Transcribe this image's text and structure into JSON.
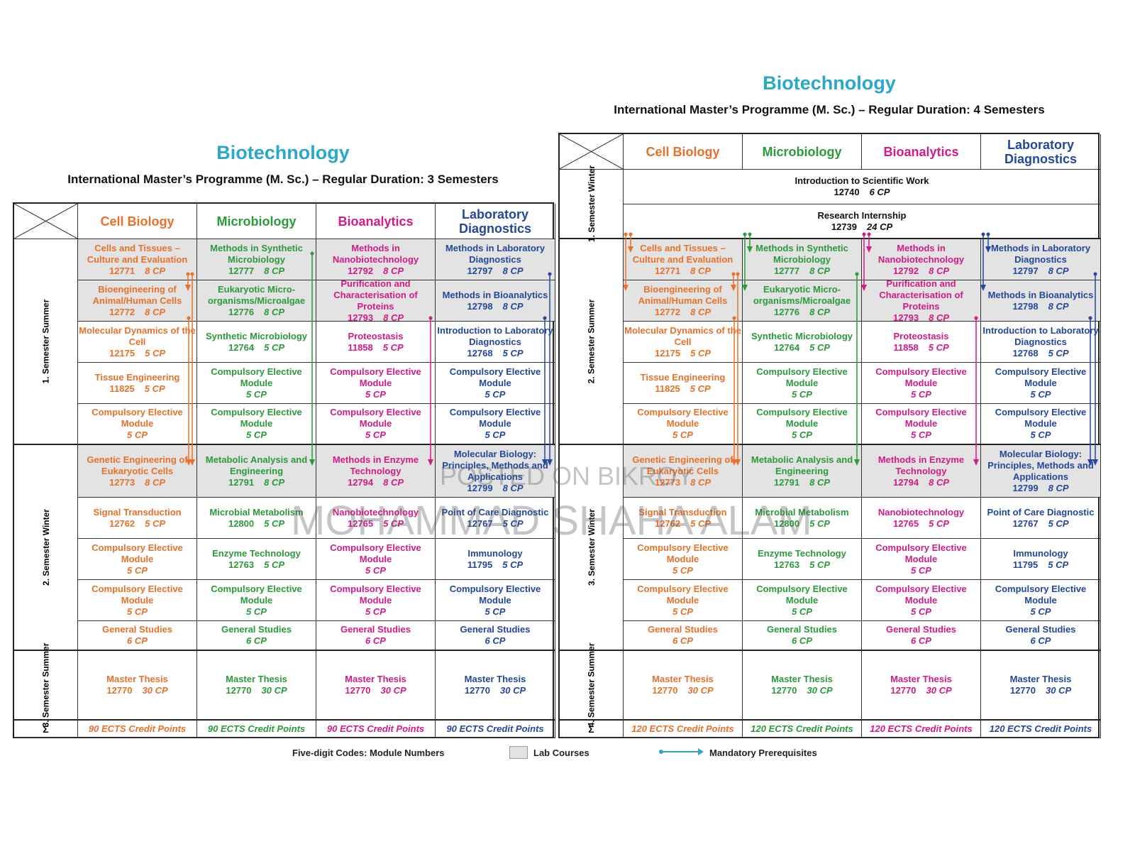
{
  "left": {
    "title": "Biotechnology",
    "subtitle": "International Master’s Programme (M. Sc.) – Regular Duration: 3 Semesters",
    "columns": [
      "Cell Biology",
      "Microbiology",
      "Bioanalytics",
      "Laboratory Diagnostics"
    ],
    "semesters": [
      {
        "label": "1. Semester Summer",
        "rows": [
          {
            "lab": true,
            "cells": [
              {
                "name": "Cells and Tissues – Culture and Evaluation",
                "code": "12771",
                "cp": "8 CP"
              },
              {
                "name": "Methods in Synthetic Microbiology",
                "code": "12777",
                "cp": "8 CP"
              },
              {
                "name": "Methods in Nanobiotechnology",
                "code": "12792",
                "cp": "8 CP"
              },
              {
                "name": "Methods in Laboratory Diagnostics",
                "code": "12797",
                "cp": "8 CP"
              }
            ]
          },
          {
            "lab": true,
            "cells": [
              {
                "name": "Bioengineering of Animal/Human Cells",
                "code": "12772",
                "cp": "8 CP"
              },
              {
                "name": "Eukaryotic Micro-organisms/Microalgae",
                "code": "12776",
                "cp": "8 CP"
              },
              {
                "name": "Purification and Characterisation of Proteins",
                "code": "12793",
                "cp": "8 CP"
              },
              {
                "name": "Methods in Bioanalytics",
                "code": "12798",
                "cp": "8 CP"
              }
            ]
          },
          {
            "lab": false,
            "cells": [
              {
                "name": "Molecular Dynamics of the Cell",
                "code": "12175",
                "cp": "5 CP"
              },
              {
                "name": "Synthetic Microbiology",
                "code": "12764",
                "cp": "5 CP"
              },
              {
                "name": "Proteostasis",
                "code": "11858",
                "cp": "5 CP"
              },
              {
                "name": "Introduction to Laboratory Diagnostics",
                "code": "12768",
                "cp": "5 CP"
              }
            ]
          },
          {
            "lab": false,
            "cells": [
              {
                "name": "Tissue Engineering",
                "code": "11825",
                "cp": "5 CP"
              },
              {
                "name": "Compulsory Elective Module",
                "code": "",
                "cp": "5 CP"
              },
              {
                "name": "Compulsory Elective Module",
                "code": "",
                "cp": "5 CP"
              },
              {
                "name": "Compulsory Elective Module",
                "code": "",
                "cp": "5 CP"
              }
            ]
          },
          {
            "lab": false,
            "cells": [
              {
                "name": "Compulsory Elective Module",
                "code": "",
                "cp": "5 CP"
              },
              {
                "name": "Compulsory Elective Module",
                "code": "",
                "cp": "5 CP"
              },
              {
                "name": "Compulsory Elective Module",
                "code": "",
                "cp": "5 CP"
              },
              {
                "name": "Compulsory Elective Module",
                "code": "",
                "cp": "5 CP"
              }
            ]
          }
        ]
      },
      {
        "label": "2. Semester Winter",
        "rows": [
          {
            "lab": true,
            "cells": [
              {
                "name": "Genetic Engineering of Eukaryotic Cells",
                "code": "12773",
                "cp": "8 CP"
              },
              {
                "name": "Metabolic Analysis and Engineering",
                "code": "12791",
                "cp": "8 CP"
              },
              {
                "name": "Methods in Enzyme Technology",
                "code": "12794",
                "cp": "8 CP"
              },
              {
                "name": "Molecular Biology: Principles, Methods and Applications",
                "code": "12799",
                "cp": "8 CP"
              }
            ]
          },
          {
            "lab": false,
            "cells": [
              {
                "name": "Signal Transduction",
                "code": "12762",
                "cp": "5 CP"
              },
              {
                "name": "Microbial Metabolism",
                "code": "12800",
                "cp": "5 CP"
              },
              {
                "name": "Nanobiotechnology",
                "code": "12765",
                "cp": "5 CP"
              },
              {
                "name": "Point of Care Diagnostic",
                "code": "12767",
                "cp": "5 CP"
              }
            ]
          },
          {
            "lab": false,
            "cells": [
              {
                "name": "Compulsory Elective Module",
                "code": "",
                "cp": "5 CP"
              },
              {
                "name": "Enzyme Technology",
                "code": "12763",
                "cp": "5 CP"
              },
              {
                "name": "Compulsory Elective Module",
                "code": "",
                "cp": "5 CP"
              },
              {
                "name": "Immunology",
                "code": "11795",
                "cp": "5 CP"
              }
            ]
          },
          {
            "lab": false,
            "cells": [
              {
                "name": "Compulsory Elective Module",
                "code": "",
                "cp": "5 CP"
              },
              {
                "name": "Compulsory Elective Module",
                "code": "",
                "cp": "5 CP"
              },
              {
                "name": "Compulsory Elective Module",
                "code": "",
                "cp": "5 CP"
              },
              {
                "name": "Compulsory Elective Module",
                "code": "",
                "cp": "5 CP"
              }
            ]
          },
          {
            "lab": false,
            "cells": [
              {
                "name": "General Studies",
                "code": "",
                "cp": "6 CP"
              },
              {
                "name": "General Studies",
                "code": "",
                "cp": "6 CP"
              },
              {
                "name": "General Studies",
                "code": "",
                "cp": "6 CP"
              },
              {
                "name": "General Studies",
                "code": "",
                "cp": "6 CP"
              }
            ]
          }
        ]
      },
      {
        "label": "3. Semester Summer",
        "rows": [
          {
            "lab": false,
            "cells": [
              {
                "name": "Master Thesis",
                "code": "12770",
                "cp": "30 CP"
              },
              {
                "name": "Master Thesis",
                "code": "12770",
                "cp": "30 CP"
              },
              {
                "name": "Master Thesis",
                "code": "12770",
                "cp": "30 CP"
              },
              {
                "name": "Master Thesis",
                "code": "12770",
                "cp": "30 CP"
              }
            ]
          }
        ]
      }
    ],
    "sigma": "Σ",
    "totals": [
      "90 ECTS Credit Points",
      "90 ECTS Credit Points",
      "90 ECTS Credit Points",
      "90 ECTS Credit Points"
    ]
  },
  "right": {
    "title": "Biotechnology",
    "subtitle": "International Master’s Programme (M. Sc.) – Regular Duration: 4 Semesters",
    "columns": [
      "Cell Biology",
      "Microbiology",
      "Bioanalytics",
      "Laboratory Diagnostics"
    ],
    "first_semester": {
      "label": "1. Semester Winter",
      "items": [
        {
          "name": "Introduction to Scientific Work",
          "code": "12740",
          "cp": "6 CP"
        },
        {
          "name": "Research Internship",
          "code": "12739",
          "cp": "24 CP"
        }
      ]
    },
    "semesters": [
      {
        "label": "2. Semester Summer",
        "rows": [
          {
            "lab": true,
            "cells": [
              {
                "name": "Cells and Tissues – Culture and Evaluation",
                "code": "12771",
                "cp": "8 CP"
              },
              {
                "name": "Methods in Synthetic Microbiology",
                "code": "12777",
                "cp": "8 CP"
              },
              {
                "name": "Methods in Nanobiotechnology",
                "code": "12792",
                "cp": "8 CP"
              },
              {
                "name": "Methods in Laboratory Diagnostics",
                "code": "12797",
                "cp": "8 CP"
              }
            ]
          },
          {
            "lab": true,
            "cells": [
              {
                "name": "Bioengineering of Animal/Human Cells",
                "code": "12772",
                "cp": "8 CP"
              },
              {
                "name": "Eukaryotic Micro-organisms/Microalgae",
                "code": "12776",
                "cp": "8 CP"
              },
              {
                "name": "Purification and Characterisation of Proteins",
                "code": "12793",
                "cp": "8 CP"
              },
              {
                "name": "Methods in Bioanalytics",
                "code": "12798",
                "cp": "8 CP"
              }
            ]
          },
          {
            "lab": false,
            "cells": [
              {
                "name": "Molecular Dynamics of the Cell",
                "code": "12175",
                "cp": "5 CP"
              },
              {
                "name": "Synthetic Microbiology",
                "code": "12764",
                "cp": "5 CP"
              },
              {
                "name": "Proteostasis",
                "code": "11858",
                "cp": "5 CP"
              },
              {
                "name": "Introduction to Laboratory Diagnostics",
                "code": "12768",
                "cp": "5 CP"
              }
            ]
          },
          {
            "lab": false,
            "cells": [
              {
                "name": "Tissue Engineering",
                "code": "11825",
                "cp": "5 CP"
              },
              {
                "name": "Compulsory Elective Module",
                "code": "",
                "cp": "5 CP"
              },
              {
                "name": "Compulsory Elective Module",
                "code": "",
                "cp": "5 CP"
              },
              {
                "name": "Compulsory Elective Module",
                "code": "",
                "cp": "5 CP"
              }
            ]
          },
          {
            "lab": false,
            "cells": [
              {
                "name": "Compulsory Elective Module",
                "code": "",
                "cp": "5 CP"
              },
              {
                "name": "Compulsory Elective Module",
                "code": "",
                "cp": "5 CP"
              },
              {
                "name": "Compulsory Elective Module",
                "code": "",
                "cp": "5 CP"
              },
              {
                "name": "Compulsory Elective Module",
                "code": "",
                "cp": "5 CP"
              }
            ]
          }
        ]
      },
      {
        "label": "3. Semester Winter",
        "rows": [
          {
            "lab": true,
            "cells": [
              {
                "name": "Genetic Engineering of Eukaryotic Cells",
                "code": "12773",
                "cp": "8 CP"
              },
              {
                "name": "Metabolic Analysis and Engineering",
                "code": "12791",
                "cp": "8 CP"
              },
              {
                "name": "Methods in Enzyme Technology",
                "code": "12794",
                "cp": "8 CP"
              },
              {
                "name": "Molecular Biology: Principles, Methods and Applications",
                "code": "12799",
                "cp": "8 CP"
              }
            ]
          },
          {
            "lab": false,
            "cells": [
              {
                "name": "Signal Transduction",
                "code": "12762",
                "cp": "5 CP"
              },
              {
                "name": "Microbial Metabolism",
                "code": "12800",
                "cp": "5 CP"
              },
              {
                "name": "Nanobiotechnology",
                "code": "12765",
                "cp": "5 CP"
              },
              {
                "name": "Point of Care Diagnostic",
                "code": "12767",
                "cp": "5 CP"
              }
            ]
          },
          {
            "lab": false,
            "cells": [
              {
                "name": "Compulsory Elective Module",
                "code": "",
                "cp": "5 CP"
              },
              {
                "name": "Enzyme Technology",
                "code": "12763",
                "cp": "5 CP"
              },
              {
                "name": "Compulsory Elective Module",
                "code": "",
                "cp": "5 CP"
              },
              {
                "name": "Immunology",
                "code": "11795",
                "cp": "5 CP"
              }
            ]
          },
          {
            "lab": false,
            "cells": [
              {
                "name": "Compulsory Elective Module",
                "code": "",
                "cp": "5 CP"
              },
              {
                "name": "Compulsory Elective Module",
                "code": "",
                "cp": "5 CP"
              },
              {
                "name": "Compulsory Elective Module",
                "code": "",
                "cp": "5 CP"
              },
              {
                "name": "Compulsory Elective Module",
                "code": "",
                "cp": "5 CP"
              }
            ]
          },
          {
            "lab": false,
            "cells": [
              {
                "name": "General Studies",
                "code": "",
                "cp": "6 CP"
              },
              {
                "name": "General Studies",
                "code": "",
                "cp": "6 CP"
              },
              {
                "name": "General Studies",
                "code": "",
                "cp": "6 CP"
              },
              {
                "name": "General Studies",
                "code": "",
                "cp": "6 CP"
              }
            ]
          }
        ]
      },
      {
        "label": "4. Semester Summer",
        "rows": [
          {
            "lab": false,
            "cells": [
              {
                "name": "Master Thesis",
                "code": "12770",
                "cp": "30 CP"
              },
              {
                "name": "Master Thesis",
                "code": "12770",
                "cp": "30 CP"
              },
              {
                "name": "Master Thesis",
                "code": "12770",
                "cp": "30 CP"
              },
              {
                "name": "Master Thesis",
                "code": "12770",
                "cp": "30 CP"
              }
            ]
          }
        ]
      }
    ],
    "sigma": "Σ",
    "totals": [
      "120 ECTS Credit Points",
      "120 ECTS Credit Points",
      "120 ECTS Credit Points",
      "120 ECTS Credit Points"
    ]
  },
  "legend": {
    "codes": "Five-digit Codes: Module Numbers",
    "lab": "Lab Courses",
    "prereq": "Mandatory Prerequisites"
  },
  "watermark": {
    "line1": "POSTED ON BIKROY",
    "line2": "MOHAMMAD SHAHA ALAM"
  },
  "colors": {
    "title": "#29a8c9",
    "cell_biology": "#e8712a",
    "microbiology": "#2a9a3a",
    "bioanalytics": "#d4198a",
    "laboratory_diagnostics": "#23479a",
    "lab_fill": "#e3e3e3"
  }
}
